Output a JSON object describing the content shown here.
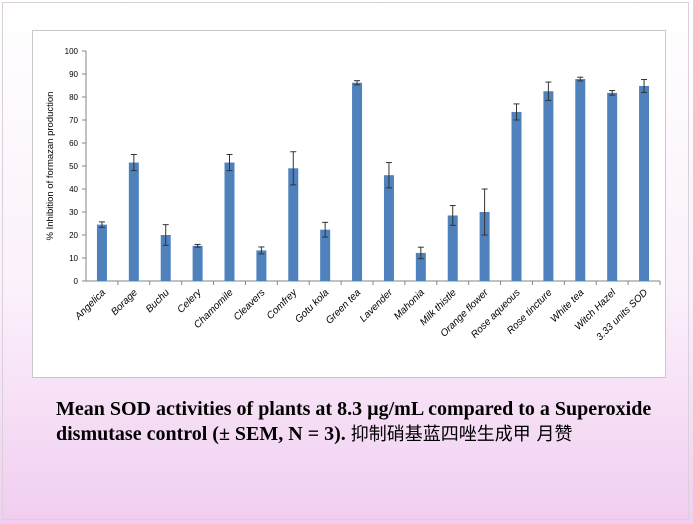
{
  "caption": {
    "text": "Mean SOD activities of plants at 8.3 µg/mL compared to a Superoxide dismutase control (± SEM, N = 3).",
    "cjk": "抑制硝基蓝四唑生成甲 月赞"
  },
  "colors": {
    "bar": "#4f81bd",
    "axis": "#868686",
    "error": "#333333"
  },
  "chart_data": {
    "type": "bar",
    "title": "",
    "xlabel": "",
    "ylabel": "% Inhibition of formazan production",
    "ylim": [
      0,
      100
    ],
    "yticks": [
      0,
      10,
      20,
      30,
      40,
      50,
      60,
      70,
      80,
      90,
      100
    ],
    "grid": false,
    "categories": [
      "Angelica",
      "Borage",
      "Buchu",
      "Celery",
      "Chamomile",
      "Cleavers",
      "Comfrey",
      "Gotu kola",
      "Green tea",
      "Lavender",
      "Mahonia",
      "Milk thistle",
      "Orange flower",
      "Rose aqueous",
      "Rose tincture",
      "White tea",
      "Witch Hazel",
      "3.33 units SOD"
    ],
    "values": [
      24.5,
      51.5,
      20,
      15.3,
      51.5,
      13.3,
      49,
      22.3,
      86.2,
      46,
      12.2,
      28.5,
      30,
      73.5,
      82.5,
      87.8,
      81.8,
      84.8
    ],
    "errors": [
      1.2,
      3.5,
      4.5,
      0.6,
      3.5,
      1.5,
      7.2,
      3.2,
      0.9,
      5.5,
      2.5,
      4.3,
      10,
      3.5,
      4,
      0.8,
      1,
      2.8
    ]
  }
}
